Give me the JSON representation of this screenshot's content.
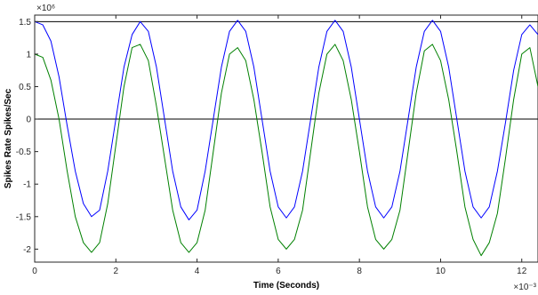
{
  "chart_data": {
    "type": "line",
    "title": "",
    "xlabel": "Time (Seconds)",
    "ylabel": "Spikes Rate Spikes/Sec",
    "x_multiplier": "×10⁻³",
    "y_multiplier": "×10⁶",
    "xlim": [
      0,
      0.0124
    ],
    "ylim": [
      -2200000,
      1600000
    ],
    "x_tick_values": [
      0,
      0.002,
      0.004,
      0.006,
      0.008,
      0.01,
      0.012
    ],
    "x_tick_labels": [
      "0",
      "2",
      "4",
      "6",
      "8",
      "10",
      "12"
    ],
    "y_tick_values": [
      1500000,
      1000000,
      500000,
      0,
      -500000,
      -1000000,
      -1500000,
      -2000000
    ],
    "y_tick_labels": [
      "1.5",
      "1",
      "0.5",
      "0",
      "-0.5",
      "-1",
      "-1.5",
      "-2"
    ],
    "reference_lines_y": [
      0,
      1500000
    ],
    "grid": false,
    "colors": {
      "series_blue": "#0000ff",
      "series_green": "#008000",
      "reference": "#000000"
    },
    "series": [
      {
        "x": [
          0,
          0.0002,
          0.0004,
          0.0006,
          0.0008,
          0.001,
          0.0012,
          0.0014,
          0.0016,
          0.0018,
          0.002,
          0.0022,
          0.0024,
          0.0026,
          0.0028,
          0.003,
          0.0032,
          0.0034,
          0.0036,
          0.0038,
          0.004,
          0.0042,
          0.0044,
          0.0046,
          0.0048,
          0.005,
          0.0052,
          0.0054,
          0.0056,
          0.0058,
          0.006,
          0.0062,
          0.0064,
          0.0066,
          0.0068,
          0.007,
          0.0072,
          0.0074,
          0.0076,
          0.0078,
          0.008,
          0.0082,
          0.0084,
          0.0086,
          0.0088,
          0.009,
          0.0092,
          0.0094,
          0.0096,
          0.0098,
          0.01,
          0.0102,
          0.0104,
          0.0106,
          0.0108,
          0.011,
          0.0112,
          0.0114,
          0.0116,
          0.0118,
          0.012,
          0.0122,
          0.0124
        ],
        "y": [
          1500000,
          1450000,
          1200000,
          650000,
          -100000,
          -800000,
          -1300000,
          -1500000,
          -1400000,
          -800000,
          0,
          800000,
          1300000,
          1500000,
          1350000,
          800000,
          0,
          -800000,
          -1350000,
          -1550000,
          -1400000,
          -800000,
          0,
          800000,
          1350000,
          1520000,
          1350000,
          800000,
          0,
          -800000,
          -1350000,
          -1520000,
          -1350000,
          -800000,
          0,
          800000,
          1350000,
          1520000,
          1350000,
          800000,
          0,
          -800000,
          -1350000,
          -1520000,
          -1350000,
          -800000,
          0,
          800000,
          1350000,
          1520000,
          1350000,
          800000,
          0,
          -800000,
          -1350000,
          -1520000,
          -1350000,
          -800000,
          -50000,
          750000,
          1300000,
          1450000,
          1300000
        ]
      },
      {
        "x": [
          0,
          0.0002,
          0.0004,
          0.0006,
          0.0008,
          0.001,
          0.0012,
          0.0014,
          0.0016,
          0.0018,
          0.002,
          0.0022,
          0.0024,
          0.0026,
          0.0028,
          0.003,
          0.0032,
          0.0034,
          0.0036,
          0.0038,
          0.004,
          0.0042,
          0.0044,
          0.0046,
          0.0048,
          0.005,
          0.0052,
          0.0054,
          0.0056,
          0.0058,
          0.006,
          0.0062,
          0.0064,
          0.0066,
          0.0068,
          0.007,
          0.0072,
          0.0074,
          0.0076,
          0.0078,
          0.008,
          0.0082,
          0.0084,
          0.0086,
          0.0088,
          0.009,
          0.0092,
          0.0094,
          0.0096,
          0.0098,
          0.01,
          0.0102,
          0.0104,
          0.0106,
          0.0108,
          0.011,
          0.0112,
          0.0114,
          0.0116,
          0.0118,
          0.012,
          0.0122,
          0.0124
        ],
        "y": [
          1000000,
          950000,
          600000,
          0,
          -800000,
          -1500000,
          -1900000,
          -2050000,
          -1900000,
          -1300000,
          -400000,
          500000,
          1100000,
          1150000,
          900000,
          200000,
          -600000,
          -1400000,
          -1900000,
          -2050000,
          -1900000,
          -1400000,
          -500000,
          400000,
          1000000,
          1100000,
          900000,
          300000,
          -500000,
          -1350000,
          -1850000,
          -2000000,
          -1850000,
          -1400000,
          -500000,
          400000,
          1000000,
          1150000,
          900000,
          300000,
          -500000,
          -1350000,
          -1850000,
          -2000000,
          -1850000,
          -1400000,
          -500000,
          400000,
          1050000,
          1150000,
          900000,
          300000,
          -500000,
          -1350000,
          -1850000,
          -2100000,
          -1900000,
          -1450000,
          -600000,
          300000,
          1000000,
          1100000,
          500000
        ]
      }
    ]
  }
}
